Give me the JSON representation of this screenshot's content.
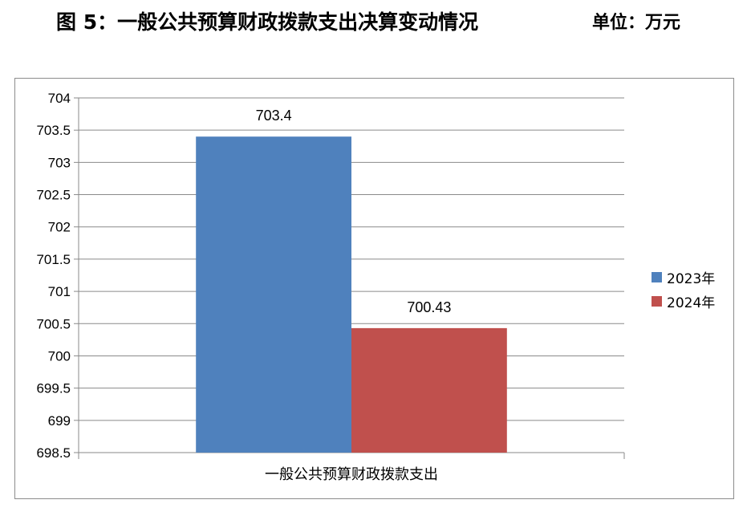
{
  "header": {
    "title": "图 5：一般公共预算财政拨款支出决算变动情况",
    "unit": "单位：万元"
  },
  "chart_data": {
    "type": "bar",
    "categories": [
      "一般公共预算财政拨款支出"
    ],
    "series": [
      {
        "name": "2023年",
        "values": [
          703.4
        ],
        "color": "#4f81bd",
        "label": "703.4"
      },
      {
        "name": "2024年",
        "values": [
          700.43
        ],
        "color": "#c0504d",
        "label": "700.43"
      }
    ],
    "ylim": [
      698.5,
      704
    ],
    "yticks": [
      "704",
      "703.5",
      "703",
      "702.5",
      "702",
      "701.5",
      "701",
      "700.5",
      "700",
      "699.5",
      "699",
      "698.5"
    ],
    "grid": true,
    "legend": "right"
  }
}
